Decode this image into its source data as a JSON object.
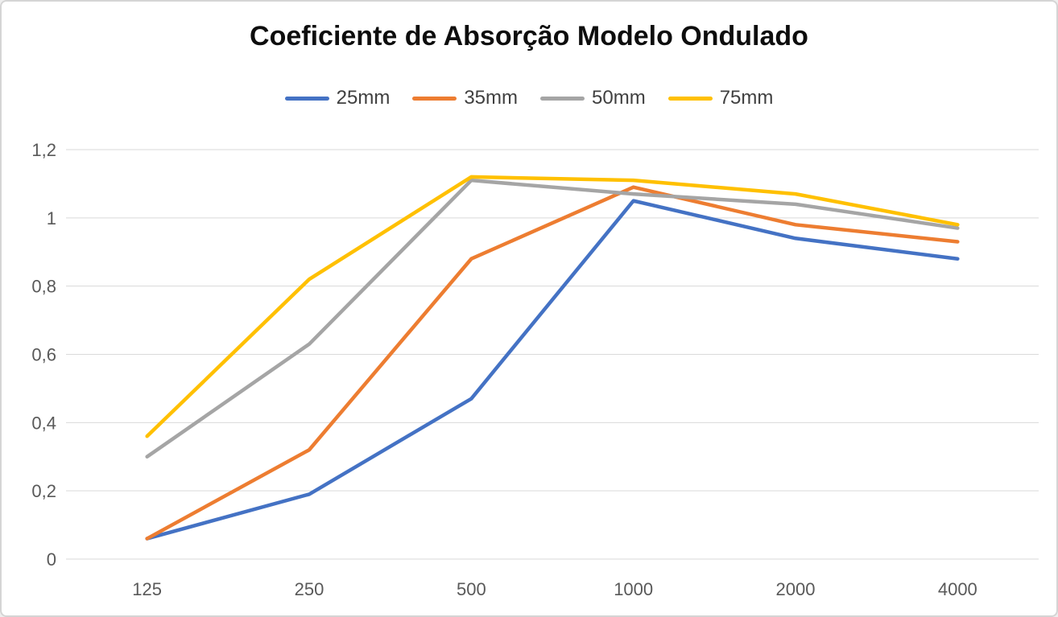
{
  "page": {
    "background": "#ffffff",
    "border_color": "#d5d5d5"
  },
  "chart_data": {
    "type": "line",
    "title": "Coeficiente de Absorção Modelo Ondulado",
    "xlabel": "",
    "ylabel": "",
    "categories": [
      "125",
      "250",
      "500",
      "1000",
      "2000",
      "4000"
    ],
    "series": [
      {
        "name": "25mm",
        "color": "#4472C4",
        "values": [
          0.06,
          0.19,
          0.47,
          1.05,
          0.94,
          0.88
        ]
      },
      {
        "name": "35mm",
        "color": "#ED7D31",
        "values": [
          0.06,
          0.32,
          0.88,
          1.09,
          0.98,
          0.93
        ]
      },
      {
        "name": "50mm",
        "color": "#A5A5A5",
        "values": [
          0.3,
          0.63,
          1.11,
          1.07,
          1.04,
          0.97
        ]
      },
      {
        "name": "75mm",
        "color": "#FFC000",
        "values": [
          0.36,
          0.82,
          1.12,
          1.11,
          1.07,
          0.98
        ]
      }
    ],
    "ylim": [
      0,
      1.2
    ],
    "y_ticks": [
      {
        "value": 0,
        "label": "0"
      },
      {
        "value": 0.2,
        "label": "0,2"
      },
      {
        "value": 0.4,
        "label": "0,4"
      },
      {
        "value": 0.6,
        "label": "0,6"
      },
      {
        "value": 0.8,
        "label": "0,8"
      },
      {
        "value": 1,
        "label": "1"
      },
      {
        "value": 1.2,
        "label": "1,2"
      }
    ],
    "grid": true,
    "legend_position": "top",
    "gridline_color": "#d9d9d9",
    "tick_color": "#595959"
  }
}
